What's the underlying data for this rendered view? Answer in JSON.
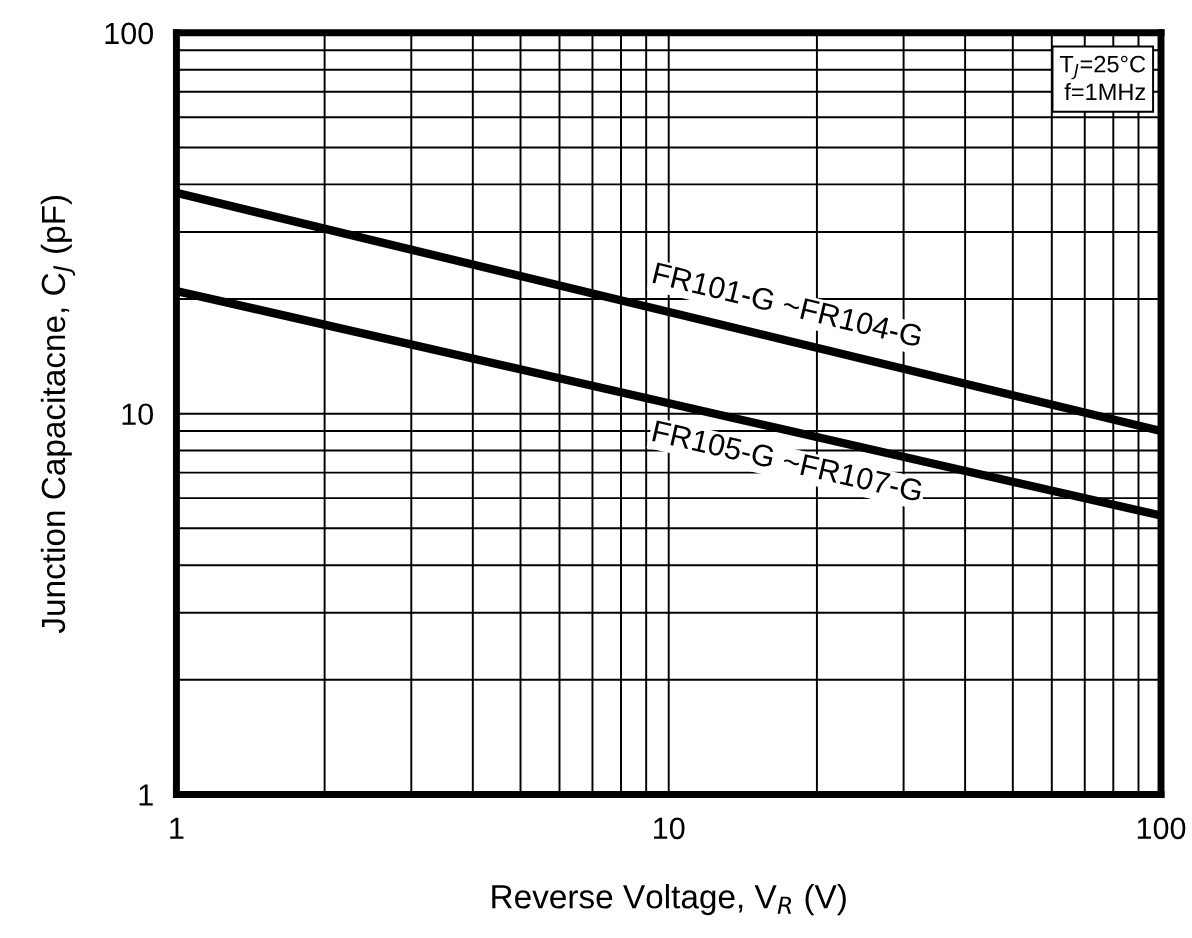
{
  "chart_data": {
    "type": "line",
    "xlabel": "Reverse Voltage, V$_{R}$ (V)",
    "ylabel": "Junction Capacitacne, C$_{J}$ (pF)",
    "log": "xy",
    "xlim": [
      1,
      100
    ],
    "xticks": [
      1,
      10,
      100
    ],
    "ylim": [
      1,
      100
    ],
    "yticks": [
      1,
      10,
      100
    ],
    "grid": true,
    "legend": false,
    "x": [
      1,
      100
    ],
    "series": [
      {
        "name": "FR101-G ~FR104-G",
        "color": "#000000",
        "values": [
          38,
          9
        ]
      },
      {
        "name": "FR105-G ~FR107-G",
        "color": "#000000",
        "values": [
          21,
          5.4
        ]
      }
    ],
    "annotations": [
      "T$_{J}$=25°C",
      "f=1MHz"
    ]
  }
}
